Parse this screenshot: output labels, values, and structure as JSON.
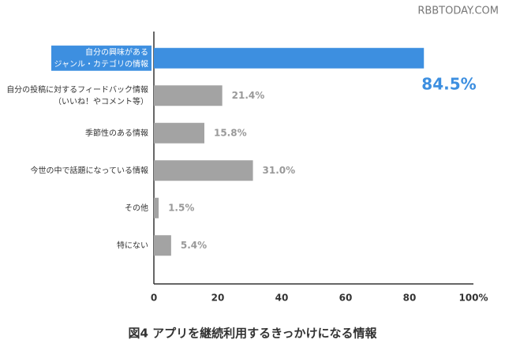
{
  "chart_data": {
    "type": "hbar",
    "title": "図4 アプリを継続利用するきっかけになる情報",
    "watermark": "RBBTODAY.COM",
    "categories": [
      [
        "自分の興味がある",
        "ジャンル・カテゴリの情報"
      ],
      [
        "自分の投稿に対するフィードバック情報",
        "（いいね！やコメント等）"
      ],
      [
        "季節性のある情報"
      ],
      [
        "今世の中で話題になっている情報"
      ],
      [
        "その他"
      ],
      [
        "特にない"
      ]
    ],
    "values": [
      84.5,
      21.4,
      15.8,
      31.0,
      1.5,
      5.4
    ],
    "value_labels": [
      "84.5%",
      "21.4%",
      "15.8%",
      "31.0%",
      "1.5%",
      "5.4%"
    ],
    "colors": [
      "#3d8fe0",
      "#a3a3a3",
      "#a3a3a3",
      "#a3a3a3",
      "#a3a3a3",
      "#a3a3a3"
    ],
    "highlight": 0,
    "xlim": [
      0,
      100
    ],
    "xticks": [
      0,
      20,
      40,
      60,
      80,
      {
        "value": 100,
        "label": "100%"
      }
    ],
    "grid": false
  }
}
